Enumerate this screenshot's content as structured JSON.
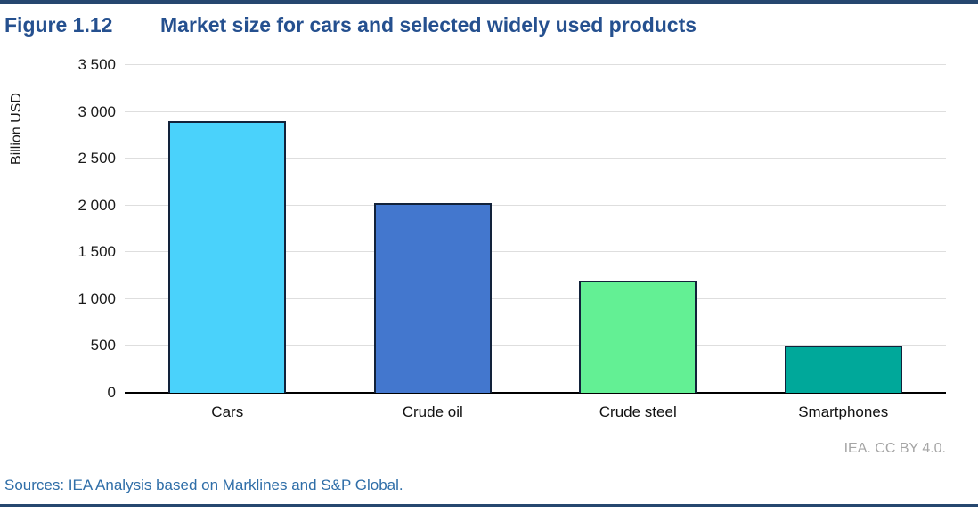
{
  "figure": {
    "label": "Figure 1.12",
    "title": "Market size for cars and selected widely used products"
  },
  "chart_data": {
    "type": "bar",
    "title": "Market size for cars and selected widely used products",
    "xlabel": "",
    "ylabel": "Billion USD",
    "categories": [
      "Cars",
      "Crude oil",
      "Crude steel",
      "Smartphones"
    ],
    "values": [
      2900,
      2030,
      1200,
      500
    ],
    "bar_colors": [
      "#4AD2FB",
      "#4377CE",
      "#63F094",
      "#00A89A"
    ],
    "ylim": [
      0,
      3500
    ],
    "ytick_step": 500,
    "ytick_labels": [
      "0",
      "500",
      "1 000",
      "1 500",
      "2 000",
      "2 500",
      "3 000",
      "3 500"
    ],
    "grid": true,
    "legend": false
  },
  "footer": {
    "attribution": "IEA. CC BY 4.0.",
    "sources": "Sources: IEA Analysis based on Marklines and S&P Global."
  },
  "colors": {
    "rule": "#26476F",
    "title_text": "#25508F",
    "sources_text": "#2F6EA8",
    "attribution_text": "#A5A5A5",
    "gridline": "#DEDEDE",
    "bar_border": "#12223A"
  }
}
